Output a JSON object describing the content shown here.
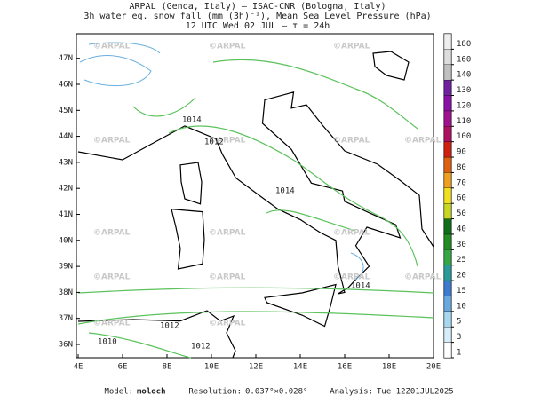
{
  "header": {
    "line1": "ARPAL (Genoa, Italy)  —  ISAC-CNR (Bologna, Italy)",
    "line2": "3h water eq. snow fall (mm (3h)⁻¹), Mean Sea Level Pressure (hPa)",
    "line3": "12 UTC Wed 02 JUL  —  τ = 24h"
  },
  "map": {
    "lon_labels": [
      "4E",
      "6E",
      "8E",
      "10E",
      "12E",
      "14E",
      "16E",
      "18E",
      "20E"
    ],
    "lat_labels": [
      "36N",
      "37N",
      "38N",
      "39N",
      "40N",
      "41N",
      "42N",
      "43N",
      "44N",
      "45N",
      "46N",
      "47N"
    ],
    "watermark": "©ARPAL",
    "isobar_labels": [
      1012,
      1014,
      1014,
      1014,
      1012,
      1010,
      1012
    ]
  },
  "colorbar": {
    "levels": [
      1,
      3,
      5,
      10,
      15,
      20,
      25,
      30,
      40,
      50,
      60,
      70,
      80,
      90,
      100,
      110,
      120,
      130,
      140,
      160,
      180
    ],
    "colors": [
      "#ffffff",
      "#d6eefa",
      "#a8d8f0",
      "#6aa8e0",
      "#3d7bd0",
      "#2a9a9a",
      "#35a845",
      "#228b22",
      "#0f6e1a",
      "#c8d820",
      "#f0e020",
      "#f0a020",
      "#e06010",
      "#d02010",
      "#b01060",
      "#a01090",
      "#8a10a8",
      "#7020a0",
      "#c0c0c0",
      "#dddddd",
      "#eeeeee"
    ]
  },
  "footer": {
    "model_label": "Model:",
    "model": "moloch",
    "resolution_label": "Resolution:",
    "resolution": "0.037°×0.028°",
    "analysis_label": "Analysis:",
    "analysis": "Tue 12Z01JUL2025"
  }
}
